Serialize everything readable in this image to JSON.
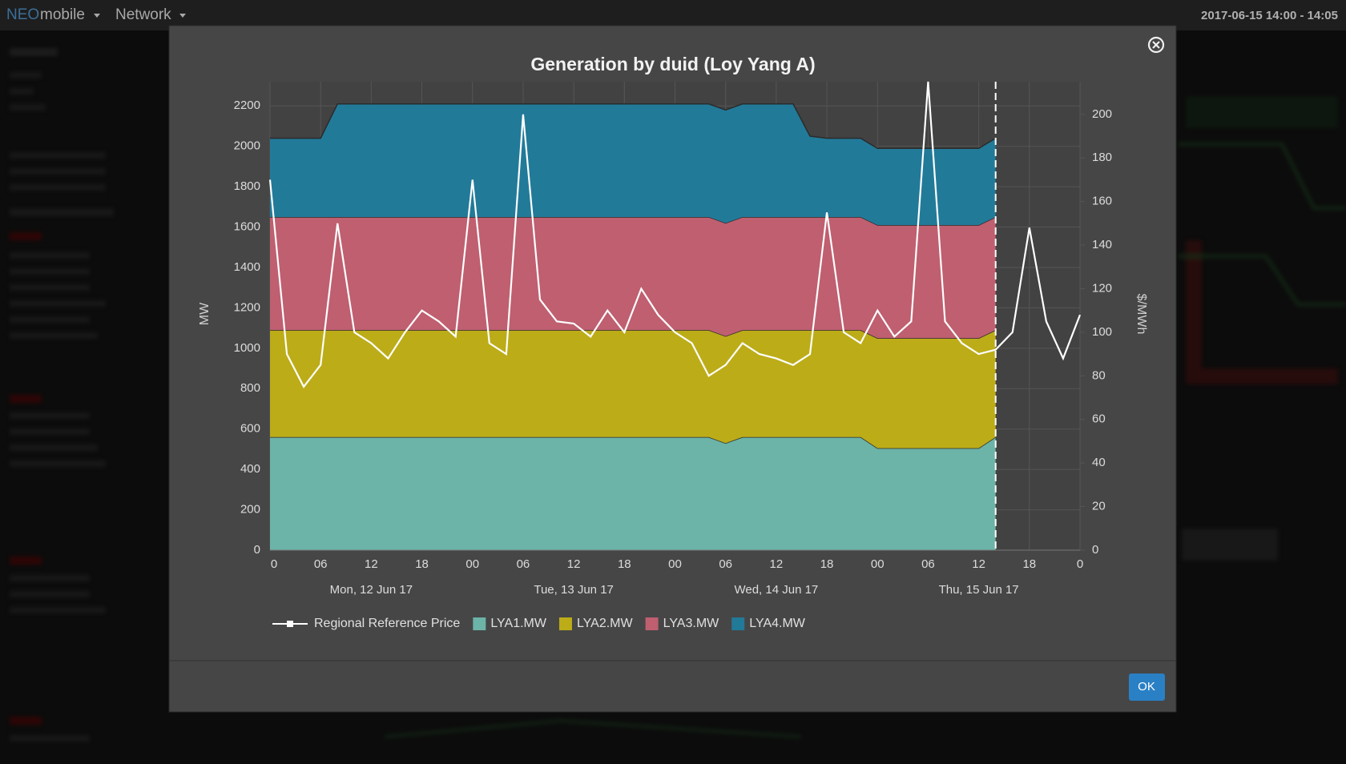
{
  "navbar": {
    "brand_a": "NEO",
    "brand_b": "mobile",
    "menu": "Network",
    "time": "2017-06-15 14:00 - 14:05"
  },
  "modal": {
    "button": "OK"
  },
  "chart_data": {
    "type": "area",
    "title": "Generation by duid (Loy Yang A)",
    "y_label": "MW",
    "y2_label": "$/MWh",
    "x": [
      0,
      2,
      4,
      6,
      8,
      10,
      12,
      14,
      16,
      18,
      20,
      22,
      24,
      26,
      28,
      30,
      32,
      34,
      36,
      38,
      40,
      42,
      44,
      46,
      48,
      50,
      52,
      54,
      56,
      58,
      60,
      62,
      64,
      66,
      68,
      70,
      72,
      74,
      76,
      78,
      80,
      82,
      84,
      86,
      88,
      90,
      92,
      94,
      96
    ],
    "xlim": [
      0,
      96
    ],
    "xticks": [
      0,
      {
        "value": 6,
        "label": "06"
      },
      12,
      18,
      {
        "value": 24,
        "label": "00"
      },
      {
        "value": 30,
        "label": "06"
      },
      {
        "value": 36,
        "label": "12"
      },
      {
        "value": 42,
        "label": "18"
      },
      {
        "value": 48,
        "label": "00"
      },
      {
        "value": 54,
        "label": "06"
      },
      {
        "value": 60,
        "label": "12"
      },
      {
        "value": 66,
        "label": "18"
      },
      {
        "value": 72,
        "label": "00"
      },
      {
        "value": 78,
        "label": "06"
      },
      {
        "value": 84,
        "label": "12"
      },
      {
        "value": 90,
        "label": "18"
      },
      {
        "value": 96,
        "label": "0"
      }
    ],
    "day_labels": [
      {
        "value": 12,
        "label": "Mon, 12 Jun 17"
      },
      {
        "value": 36,
        "label": "Tue, 13 Jun 17"
      },
      {
        "value": 60,
        "label": "Wed, 14 Jun 17"
      },
      {
        "value": 84,
        "label": "Thu, 15 Jun 17"
      }
    ],
    "ylim": [
      0,
      2320
    ],
    "yticks": [
      0,
      200,
      400,
      600,
      800,
      1000,
      1200,
      1400,
      1600,
      1800,
      2000,
      2200
    ],
    "y2lim": [
      0,
      215
    ],
    "y2ticks": [
      0,
      20,
      40,
      60,
      80,
      100,
      120,
      140,
      160,
      180,
      200
    ],
    "grid": true,
    "legend": "bottom",
    "series": [
      {
        "name": "Regional Reference Price",
        "type": "line",
        "axis": "y2",
        "color": "#ffffff",
        "values": [
          170,
          90,
          75,
          85,
          150,
          100,
          95,
          88,
          100,
          110,
          105,
          98,
          170,
          95,
          90,
          200,
          115,
          105,
          104,
          98,
          110,
          100,
          120,
          108,
          100,
          95,
          80,
          85,
          95,
          90,
          88,
          85,
          90,
          155,
          100,
          95,
          110,
          98,
          105,
          215,
          105,
          95,
          90,
          92,
          100,
          148,
          105,
          88,
          108
        ]
      },
      {
        "name": "LYA1.MW",
        "type": "area",
        "color": "#6cb3a8",
        "values": [
          560,
          560,
          560,
          560,
          560,
          560,
          560,
          560,
          560,
          560,
          560,
          560,
          560,
          560,
          560,
          560,
          560,
          560,
          560,
          560,
          560,
          560,
          560,
          560,
          560,
          560,
          560,
          530,
          560,
          560,
          560,
          560,
          560,
          560,
          560,
          560,
          505,
          505,
          505,
          505,
          505,
          505,
          505,
          560,
          null,
          null,
          null,
          null,
          null
        ]
      },
      {
        "name": "LYA2.MW",
        "type": "area",
        "color": "#bcac18",
        "values": [
          530,
          530,
          530,
          530,
          530,
          530,
          530,
          530,
          530,
          530,
          530,
          530,
          530,
          530,
          530,
          530,
          530,
          530,
          530,
          530,
          530,
          530,
          530,
          530,
          530,
          530,
          530,
          530,
          530,
          530,
          530,
          530,
          530,
          530,
          530,
          530,
          545,
          545,
          545,
          545,
          545,
          545,
          545,
          530,
          null,
          null,
          null,
          null,
          null
        ]
      },
      {
        "name": "LYA3.MW",
        "type": "area",
        "color": "#bf5f70",
        "values": [
          560,
          560,
          560,
          560,
          560,
          560,
          560,
          560,
          560,
          560,
          560,
          560,
          560,
          560,
          560,
          560,
          560,
          560,
          560,
          560,
          560,
          560,
          560,
          560,
          560,
          560,
          560,
          560,
          560,
          560,
          560,
          560,
          560,
          560,
          560,
          560,
          560,
          560,
          560,
          560,
          560,
          560,
          560,
          560,
          null,
          null,
          null,
          null,
          null
        ]
      },
      {
        "name": "LYA4.MW",
        "type": "area",
        "color": "#227a99",
        "values": [
          390,
          390,
          390,
          390,
          560,
          560,
          560,
          560,
          560,
          560,
          560,
          560,
          560,
          560,
          560,
          560,
          560,
          560,
          560,
          560,
          560,
          560,
          560,
          560,
          560,
          560,
          560,
          560,
          560,
          560,
          560,
          560,
          400,
          390,
          390,
          390,
          380,
          380,
          380,
          380,
          380,
          380,
          380,
          390,
          null,
          null,
          null,
          null,
          null
        ]
      }
    ]
  }
}
